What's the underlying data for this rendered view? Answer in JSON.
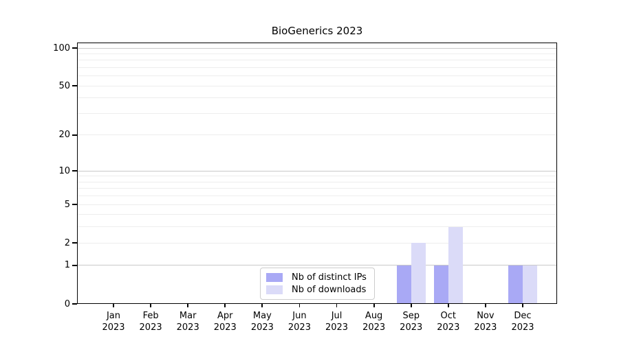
{
  "title": "BioGenerics 2023",
  "chart_data": {
    "type": "bar",
    "title": "BioGenerics 2023",
    "categories": [
      "Jan 2023",
      "Feb 2023",
      "Mar 2023",
      "Apr 2023",
      "May 2023",
      "Jun 2023",
      "Jul 2023",
      "Aug 2023",
      "Sep 2023",
      "Oct 2023",
      "Nov 2023",
      "Dec 2023"
    ],
    "series": [
      {
        "name": "Nb of distinct IPs",
        "color": "#a9a9f5",
        "values": [
          0,
          0,
          0,
          0,
          0,
          0,
          0,
          0,
          1,
          1,
          0,
          1
        ]
      },
      {
        "name": "Nb of downloads",
        "color": "#dbdbf8",
        "values": [
          0,
          0,
          0,
          0,
          0,
          0,
          0,
          0,
          2,
          3,
          0,
          1
        ]
      }
    ],
    "xlabel": "",
    "ylabel": "",
    "yscale": "log1p",
    "yticks": [
      0,
      1,
      2,
      5,
      10,
      20,
      50,
      100
    ],
    "ylim": [
      0,
      110
    ],
    "major_gridline_values": [
      1,
      10,
      100
    ],
    "minor_gridline_values": [
      2,
      3,
      4,
      5,
      6,
      7,
      8,
      9,
      20,
      30,
      40,
      50,
      60,
      70,
      80,
      90
    ],
    "grid": true,
    "legend_position": "lower-center-inside"
  },
  "legend": {
    "items": [
      {
        "label": "Nb of distinct IPs",
        "color": "#a9a9f5"
      },
      {
        "label": "Nb of downloads",
        "color": "#dbdbf8"
      }
    ]
  },
  "colors": {
    "background": "#ffffff",
    "bar_distinct_ips": "#a9a9f5",
    "bar_downloads": "#dbdbf8",
    "major_grid": "#c9c9c9",
    "minor_grid": "#ededed",
    "axis": "#000000",
    "text": "#000000",
    "legend_border": "#cccccc"
  }
}
